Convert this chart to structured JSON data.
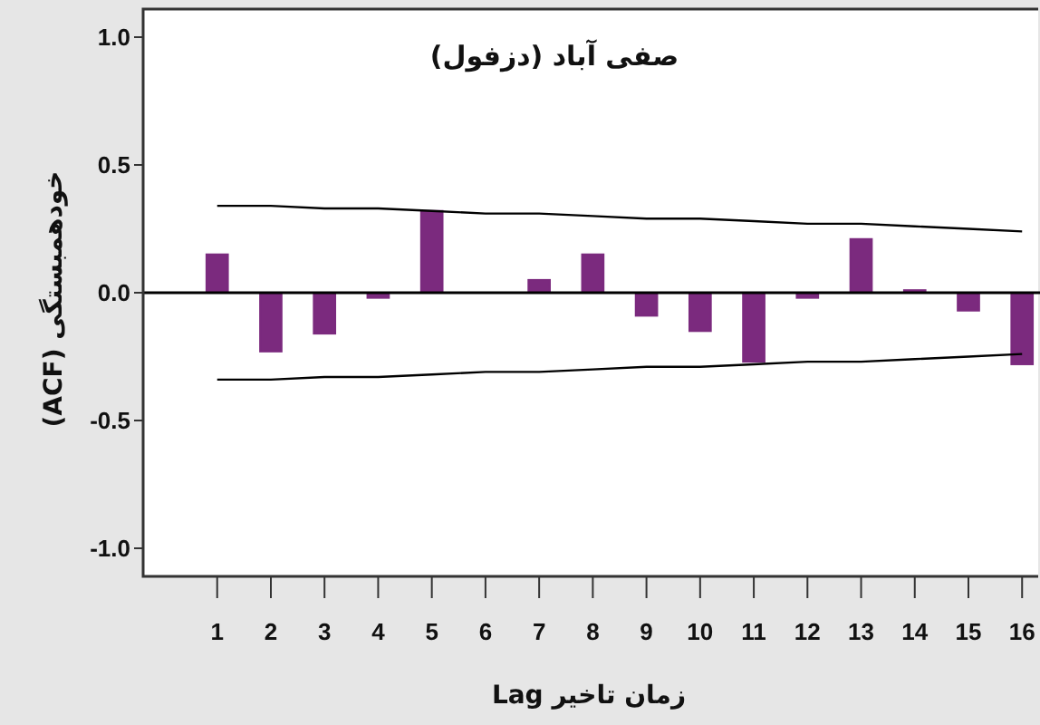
{
  "chart_data": {
    "type": "bar",
    "title": "صفی آباد (دزفول)",
    "xlabel": "زمان تاخیر Lag",
    "ylabel": "خودهمبستگی (ACF)",
    "x": [
      1,
      2,
      3,
      4,
      5,
      6,
      7,
      8,
      9,
      10,
      11,
      12,
      13,
      14,
      15,
      16
    ],
    "series": [
      {
        "color": "#7b2a7e",
        "values": [
          0.15,
          -0.23,
          -0.16,
          -0.02,
          0.32,
          0.0,
          0.05,
          0.15,
          -0.09,
          -0.15,
          -0.27,
          -0.02,
          0.21,
          0.01,
          -0.07,
          -0.28
        ]
      },
      {
        "type": "line",
        "color": "#000000",
        "values": [
          0.34,
          0.34,
          0.33,
          0.33,
          0.32,
          0.31,
          0.31,
          0.3,
          0.29,
          0.29,
          0.28,
          0.27,
          0.27,
          0.26,
          0.25,
          0.24
        ]
      },
      {
        "type": "line",
        "color": "#000000",
        "values": [
          -0.34,
          -0.34,
          -0.33,
          -0.33,
          -0.32,
          -0.31,
          -0.31,
          -0.3,
          -0.29,
          -0.29,
          -0.28,
          -0.27,
          -0.27,
          -0.26,
          -0.25,
          -0.24
        ]
      }
    ],
    "xlim": [
      -0.38,
      16.3
    ],
    "xticks": [
      1,
      2,
      3,
      4,
      5,
      6,
      7,
      8,
      9,
      10,
      11,
      12,
      13,
      14,
      15,
      16
    ],
    "ylim": [
      -1.11,
      1.11
    ],
    "yticks": [
      {
        "value": -1,
        "label": "-1.0"
      },
      {
        "value": -0.5,
        "label": "-0.5"
      },
      {
        "value": 0,
        "label": "0.0"
      },
      {
        "value": 0.5,
        "label": "0.5"
      },
      {
        "value": 1,
        "label": "1.0"
      }
    ],
    "ref_lines": [
      {
        "axis": "y",
        "value": 0,
        "color": "#000000"
      }
    ],
    "grid": false,
    "marker": "none",
    "line_style": "solid"
  }
}
